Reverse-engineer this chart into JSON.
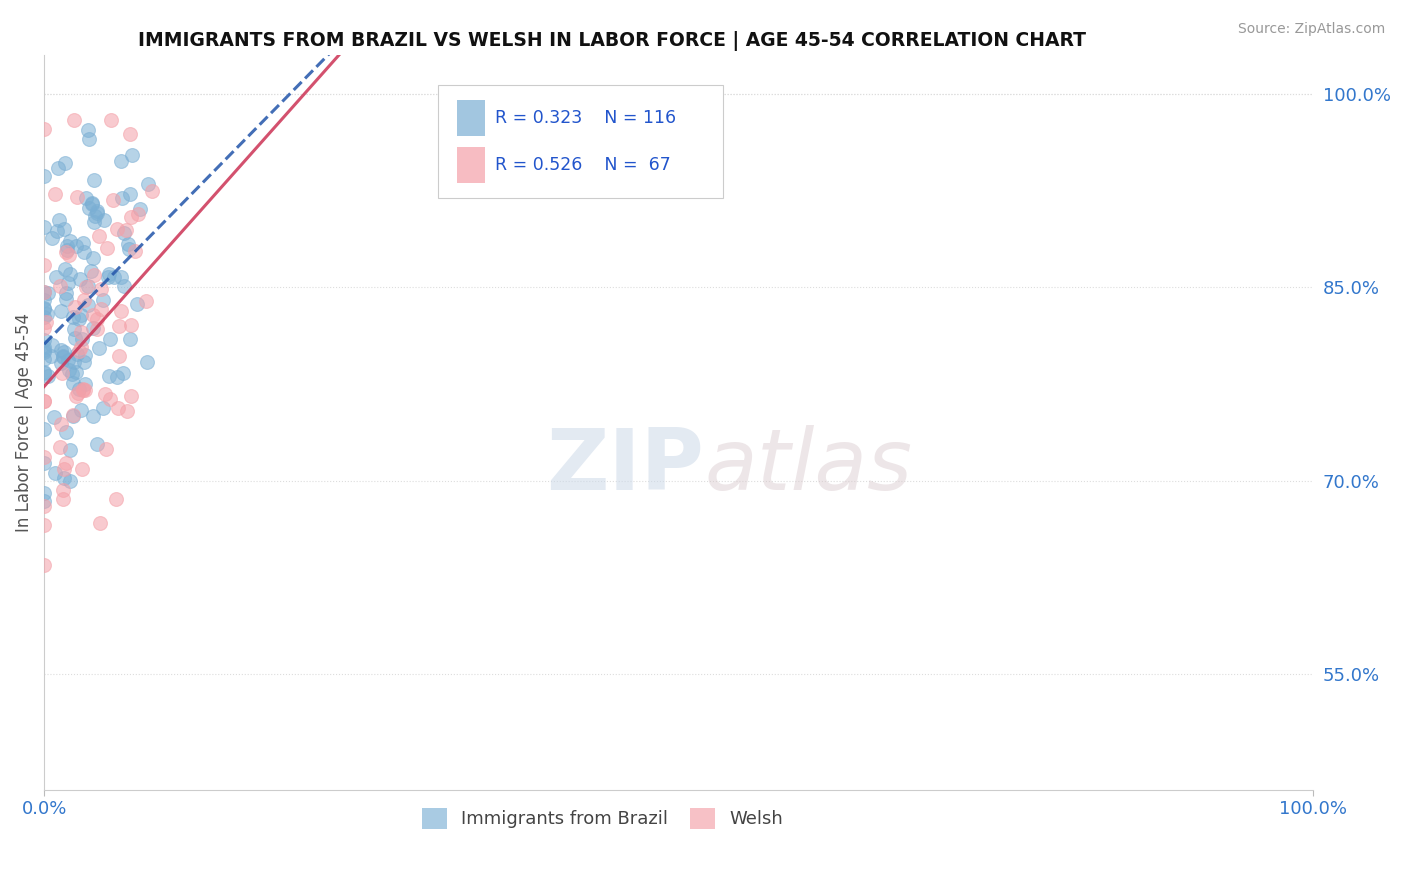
{
  "title": "IMMIGRANTS FROM BRAZIL VS WELSH IN LABOR FORCE | AGE 45-54 CORRELATION CHART",
  "source": "Source: ZipAtlas.com",
  "ylabel": "In Labor Force | Age 45-54",
  "xlim": [
    0.0,
    1.0
  ],
  "ylim": [
    0.46,
    1.03
  ],
  "xtick_labels": [
    "0.0%",
    "100.0%"
  ],
  "ytick_labels": [
    "55.0%",
    "70.0%",
    "85.0%",
    "100.0%"
  ],
  "ytick_positions": [
    0.55,
    0.7,
    0.85,
    1.0
  ],
  "legend_r_brazil": "R = 0.323",
  "legend_n_brazil": "N = 116",
  "legend_r_welsh": "R = 0.526",
  "legend_n_welsh": "N =  67",
  "brazil_color": "#7bafd4",
  "welsh_color": "#f4a0a8",
  "brazil_line_color": "#2255aa",
  "welsh_line_color": "#cc3355",
  "brazil_label": "Immigrants from Brazil",
  "welsh_label": "Welsh",
  "watermark_zip": "ZIP",
  "watermark_atlas": "atlas",
  "background_color": "#ffffff",
  "grid_color": "#dddddd",
  "brazil_n": 116,
  "welsh_n": 67,
  "brazil_R": 0.323,
  "welsh_R": 0.526,
  "seed": 7
}
